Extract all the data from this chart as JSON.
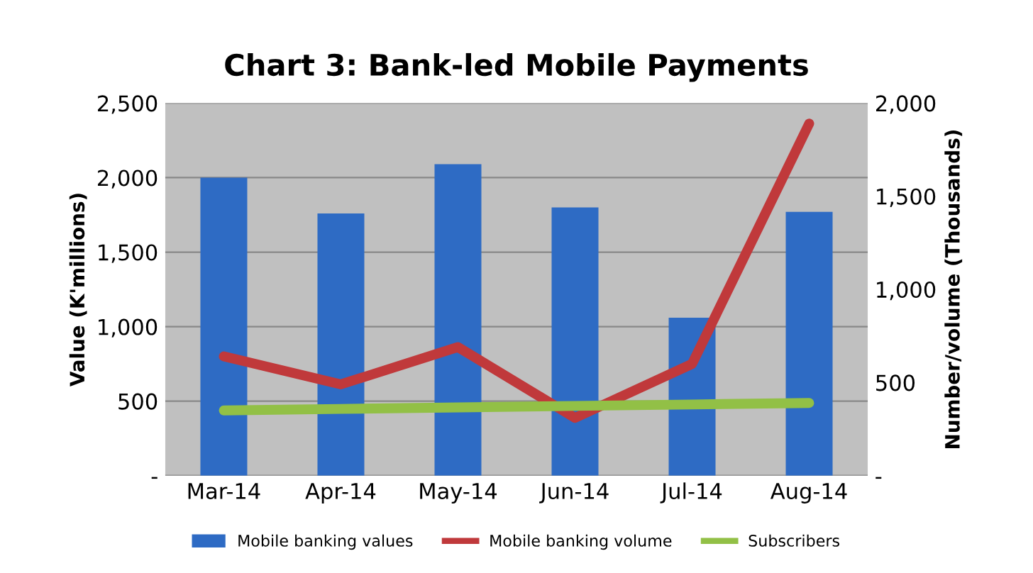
{
  "chart_data": {
    "type": "bar",
    "title": "Chart 3: Bank-led Mobile Payments",
    "ylabel": "Value (K'millions)",
    "y2label": "Number/volume (Thousands)",
    "categories": [
      "Mar-14",
      "Apr-14",
      "May-14",
      "Jun-14",
      "Jul-14",
      "Aug-14"
    ],
    "series": [
      {
        "name": "Mobile banking values",
        "color": "#2e6bc4",
        "values": [
          2000,
          1760,
          2090,
          1800,
          1060,
          1770
        ]
      },
      {
        "name": "Mobile banking volume",
        "type": "line",
        "axis": "y2",
        "color": "#c0393b",
        "values": [
          640,
          490,
          690,
          310,
          600,
          1890
        ]
      },
      {
        "name": "Subscribers",
        "type": "line",
        "axis": "y2",
        "color": "#92c046",
        "values": [
          350,
          358,
          366,
          374,
          382,
          390
        ]
      }
    ],
    "ylim": [
      0,
      2500
    ],
    "yticks": [
      {
        "value": 0,
        "label": "-"
      },
      {
        "value": 500,
        "label": "500"
      },
      {
        "value": 1000,
        "label": "1,000"
      },
      {
        "value": 1500,
        "label": "1,500"
      },
      {
        "value": 2000,
        "label": "2,000"
      },
      {
        "value": 2500,
        "label": "2,500"
      }
    ],
    "y2lim": [
      0,
      2000
    ],
    "y2ticks": [
      {
        "value": 0,
        "label": "-"
      },
      {
        "value": 500,
        "label": "500"
      },
      {
        "value": 1000,
        "label": "1,000"
      },
      {
        "value": 1500,
        "label": "1,500"
      },
      {
        "value": 2000,
        "label": "2,000"
      }
    ],
    "grid": "y",
    "legend": "bottom"
  }
}
